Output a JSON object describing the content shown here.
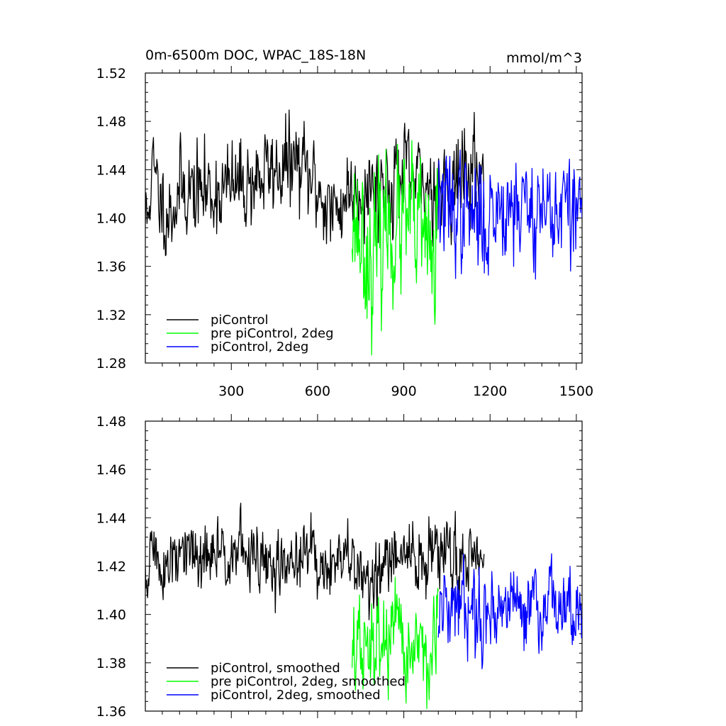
{
  "colors": {
    "background": "#ffffff",
    "axis": "#000000",
    "piControl": "#000000",
    "pre_piControl_2deg": "#00ff00",
    "piControl_2deg": "#0000ff"
  },
  "chart_data": [
    {
      "type": "line",
      "title": "0m-6500m DOC, WPAC_18S-18N",
      "units": "mmol/m^3",
      "xlim": [
        1,
        1520
      ],
      "ylim": [
        1.28,
        1.52
      ],
      "xticks": [
        300,
        600,
        900,
        1200,
        1500
      ],
      "xtick_labels": [
        "300",
        "600",
        "900",
        "1200",
        "1500"
      ],
      "yticks": [
        1.28,
        1.32,
        1.36,
        1.4,
        1.44,
        1.48,
        1.52
      ],
      "ytick_labels": [
        "1.28",
        "1.32",
        "1.36",
        "1.40",
        "1.44",
        "1.48",
        "1.52"
      ],
      "legend_position": "bottom-left",
      "grid": false,
      "series": [
        {
          "name": "piControl",
          "color": "#000000",
          "x_range": [
            1,
            1180
          ],
          "mean": 1.422,
          "spread": 0.018,
          "seed": 11,
          "anchors": [
            [
              1,
              1.36
            ],
            [
              10,
              1.35
            ],
            [
              15,
              1.44
            ],
            [
              30,
              1.46
            ],
            [
              50,
              1.41
            ],
            [
              80,
              1.37
            ],
            [
              130,
              1.43
            ],
            [
              200,
              1.42
            ],
            [
              300,
              1.43
            ],
            [
              380,
              1.45
            ],
            [
              440,
              1.47
            ],
            [
              520,
              1.49
            ],
            [
              600,
              1.43
            ],
            [
              660,
              1.36
            ],
            [
              700,
              1.42
            ],
            [
              750,
              1.43
            ],
            [
              820,
              1.44
            ],
            [
              900,
              1.46
            ],
            [
              960,
              1.43
            ],
            [
              1040,
              1.44
            ],
            [
              1100,
              1.45
            ],
            [
              1150,
              1.48
            ],
            [
              1180,
              1.44
            ]
          ]
        },
        {
          "name": "pre piControl, 2deg",
          "color": "#00ff00",
          "x_range": [
            720,
            1020
          ],
          "mean": 1.392,
          "spread": 0.028,
          "seed": 23,
          "anchors": [
            [
              720,
              1.43
            ],
            [
              760,
              1.36
            ],
            [
              790,
              1.3
            ],
            [
              840,
              1.4
            ],
            [
              880,
              1.38
            ],
            [
              920,
              1.41
            ],
            [
              960,
              1.37
            ],
            [
              1000,
              1.33
            ],
            [
              1010,
              1.29
            ],
            [
              1020,
              1.44
            ]
          ]
        },
        {
          "name": "piControl, 2deg",
          "color": "#0000ff",
          "x_range": [
            1020,
            1520
          ],
          "mean": 1.412,
          "spread": 0.022,
          "seed": 37,
          "anchors": [
            [
              1020,
              1.42
            ],
            [
              1060,
              1.4
            ],
            [
              1120,
              1.39
            ],
            [
              1180,
              1.36
            ],
            [
              1240,
              1.42
            ],
            [
              1300,
              1.41
            ],
            [
              1380,
              1.4
            ],
            [
              1440,
              1.4
            ],
            [
              1500,
              1.39
            ],
            [
              1520,
              1.41
            ]
          ]
        }
      ]
    },
    {
      "type": "line",
      "xlim": [
        1,
        1520
      ],
      "ylim": [
        1.36,
        1.48
      ],
      "xticks": [
        300,
        600,
        900,
        1200,
        1500
      ],
      "yticks": [
        1.36,
        1.38,
        1.4,
        1.42,
        1.44,
        1.46,
        1.48
      ],
      "ytick_labels": [
        "1.36",
        "1.38",
        "1.40",
        "1.42",
        "1.44",
        "1.46",
        "1.48"
      ],
      "legend_position": "bottom-left",
      "grid": false,
      "series": [
        {
          "name": "piControl, smoothed",
          "color": "#000000",
          "x_range": [
            1,
            1180
          ],
          "mean": 1.422,
          "spread": 0.007,
          "seed": 51,
          "anchors": [
            [
              1,
              1.39
            ],
            [
              20,
              1.44
            ],
            [
              50,
              1.42
            ],
            [
              80,
              1.41
            ],
            [
              130,
              1.43
            ],
            [
              200,
              1.42
            ],
            [
              250,
              1.43
            ],
            [
              300,
              1.44
            ],
            [
              350,
              1.43
            ],
            [
              400,
              1.42
            ],
            [
              450,
              1.41
            ],
            [
              500,
              1.42
            ],
            [
              560,
              1.43
            ],
            [
              620,
              1.42
            ],
            [
              700,
              1.42
            ],
            [
              760,
              1.41
            ],
            [
              800,
              1.4
            ],
            [
              850,
              1.42
            ],
            [
              900,
              1.43
            ],
            [
              950,
              1.42
            ],
            [
              1000,
              1.43
            ],
            [
              1050,
              1.43
            ],
            [
              1100,
              1.42
            ],
            [
              1150,
              1.44
            ],
            [
              1180,
              1.43
            ]
          ]
        },
        {
          "name": "pre piControl, 2deg, smoothed",
          "color": "#00ff00",
          "x_range": [
            720,
            1020
          ],
          "mean": 1.387,
          "spread": 0.01,
          "seed": 67,
          "anchors": [
            [
              720,
              1.39
            ],
            [
              750,
              1.38
            ],
            [
              780,
              1.37
            ],
            [
              820,
              1.4
            ],
            [
              860,
              1.39
            ],
            [
              900,
              1.38
            ],
            [
              940,
              1.39
            ],
            [
              980,
              1.38
            ],
            [
              1010,
              1.37
            ],
            [
              1020,
              1.39
            ]
          ]
        },
        {
          "name": "piControl, 2deg, smoothed",
          "color": "#0000ff",
          "x_range": [
            1020,
            1520
          ],
          "mean": 1.404,
          "spread": 0.008,
          "seed": 79,
          "anchors": [
            [
              1020,
              1.4
            ],
            [
              1060,
              1.39
            ],
            [
              1100,
              1.41
            ],
            [
              1160,
              1.4
            ],
            [
              1220,
              1.4
            ],
            [
              1300,
              1.41
            ],
            [
              1350,
              1.4
            ],
            [
              1400,
              1.4
            ],
            [
              1450,
              1.41
            ],
            [
              1500,
              1.4
            ],
            [
              1520,
              1.4
            ]
          ]
        }
      ]
    }
  ]
}
